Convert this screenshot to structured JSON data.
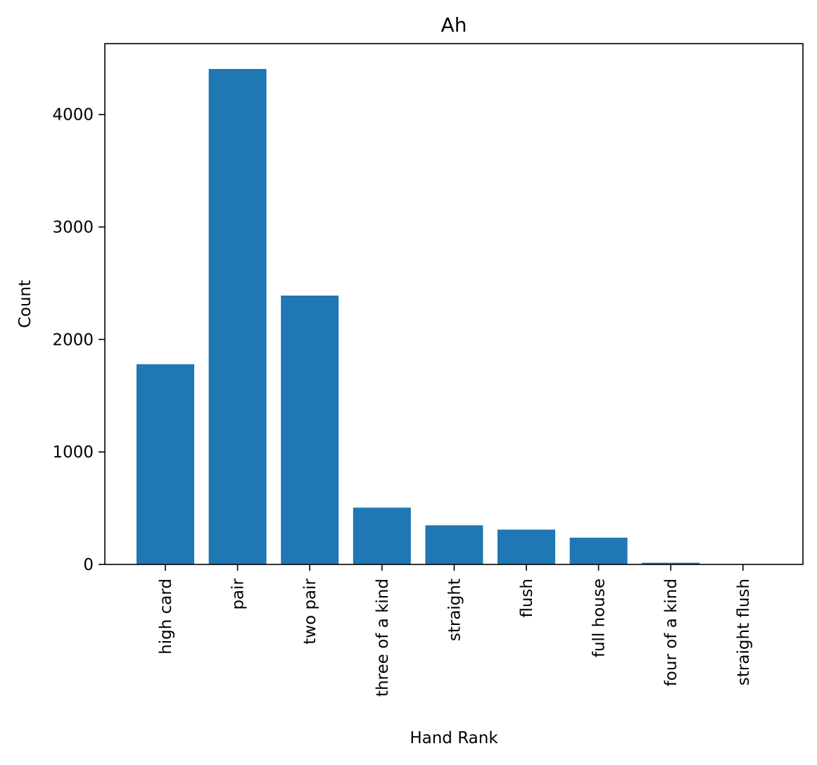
{
  "chart_data": {
    "type": "bar",
    "title": "Ah",
    "xlabel": "Hand Rank",
    "ylabel": "Count",
    "categories": [
      "high card",
      "pair",
      "two pair",
      "three of a kind",
      "straight",
      "flush",
      "full house",
      "four of a kind",
      "straight flush"
    ],
    "values": [
      1780,
      4405,
      2390,
      505,
      348,
      310,
      238,
      15,
      2
    ],
    "ylim": [
      0,
      4630
    ],
    "yticks": [
      0,
      1000,
      2000,
      3000,
      4000
    ],
    "ytick_labels": [
      "0",
      "1000",
      "2000",
      "3000",
      "4000"
    ],
    "grid": false,
    "legend": false,
    "bar_color": "#1f77b4"
  }
}
